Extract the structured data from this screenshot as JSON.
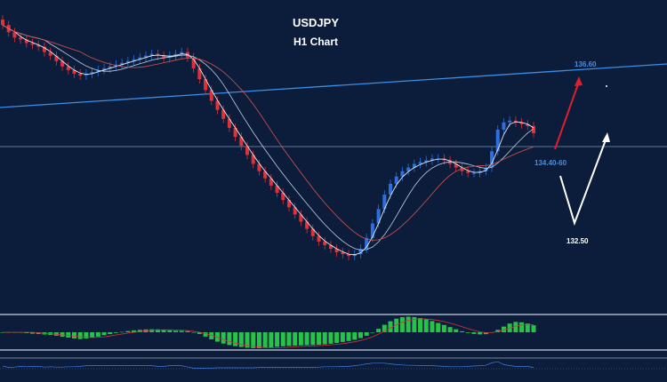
{
  "chart_data": {
    "type": "candlestick",
    "title": "USDJPY",
    "subtitle": "H1 Chart",
    "price_range": [
      131.0,
      139.0
    ],
    "closes": [
      138.8,
      138.6,
      138.45,
      138.4,
      138.3,
      138.25,
      138.2,
      138.05,
      137.95,
      137.8,
      137.65,
      137.55,
      137.45,
      137.4,
      137.45,
      137.5,
      137.55,
      137.6,
      137.65,
      137.7,
      137.75,
      137.8,
      137.85,
      137.9,
      137.95,
      138.0,
      137.95,
      137.9,
      137.95,
      138.0,
      138.05,
      137.9,
      137.6,
      137.3,
      137.0,
      136.7,
      136.45,
      136.2,
      135.95,
      135.7,
      135.45,
      135.2,
      134.95,
      134.75,
      134.55,
      134.35,
      134.15,
      133.95,
      133.75,
      133.55,
      133.35,
      133.15,
      132.95,
      132.8,
      132.7,
      132.6,
      132.5,
      132.45,
      132.4,
      132.45,
      132.6,
      132.9,
      133.3,
      133.7,
      134.1,
      134.4,
      134.6,
      134.75,
      134.85,
      134.95,
      135.0,
      135.05,
      135.1,
      135.1,
      135.05,
      134.95,
      134.85,
      134.75,
      134.7,
      134.7,
      134.75,
      134.85,
      135.3,
      135.9,
      136.1,
      136.15,
      136.1,
      136.05,
      136.0,
      135.8
    ],
    "support_level": 135.12,
    "labels": {
      "target": "136.60",
      "zone": "134.40-60",
      "low": "132.50"
    },
    "indicators": [
      "MACD histogram",
      "oscillator"
    ],
    "grid": false
  },
  "colors": {
    "background": "#0b1d3a",
    "bull": "#2b6fe0",
    "bear": "#e0303a",
    "trendline": "#3a8ee8",
    "macd_bar": "#27c24a",
    "up_arrow": "#e01e2e",
    "scenario_arrow": "#ffffff"
  }
}
